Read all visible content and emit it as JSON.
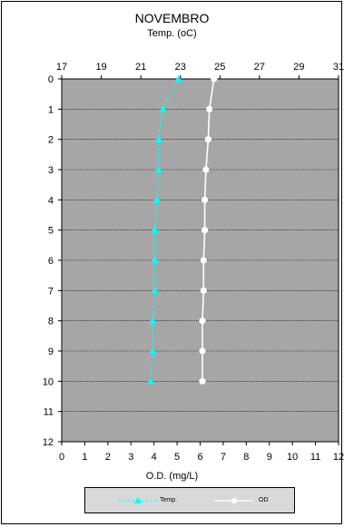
{
  "chart_data": {
    "type": "line",
    "title": "NOVEMBRO",
    "top_axis_label": "Temp. (oC)",
    "bottom_axis_label": "O.D. (mg/L)",
    "top_axis": {
      "range": [
        17,
        31
      ],
      "ticks": [
        "17",
        "19",
        "21",
        "23",
        "25",
        "27",
        "29",
        "31"
      ]
    },
    "bottom_axis": {
      "range": [
        0,
        12
      ],
      "ticks": [
        "0",
        "1",
        "2",
        "3",
        "4",
        "5",
        "6",
        "7",
        "8",
        "9",
        "10",
        "11",
        "12"
      ]
    },
    "y_axis": {
      "range": [
        0,
        12
      ],
      "inverted": true,
      "ticks": [
        "0",
        "1",
        "2",
        "3",
        "4",
        "5",
        "6",
        "7",
        "8",
        "9",
        "10",
        "11",
        "12"
      ]
    },
    "grid": true,
    "legend_position": "bottom",
    "plot_background": "#a6a6a6",
    "series": [
      {
        "name": "Temp.",
        "axis": "top",
        "color": "#00ffff",
        "marker": "triangle",
        "line_style": "dashed",
        "points": [
          {
            "x": 22.9,
            "depth": 0
          },
          {
            "x": 22.1,
            "depth": 1
          },
          {
            "x": 21.9,
            "depth": 2
          },
          {
            "x": 21.9,
            "depth": 3
          },
          {
            "x": 21.8,
            "depth": 4
          },
          {
            "x": 21.7,
            "depth": 5
          },
          {
            "x": 21.7,
            "depth": 6
          },
          {
            "x": 21.7,
            "depth": 7
          },
          {
            "x": 21.6,
            "depth": 8
          },
          {
            "x": 21.6,
            "depth": 9
          },
          {
            "x": 21.5,
            "depth": 10
          }
        ]
      },
      {
        "name": "OD",
        "axis": "bottom",
        "color": "#ffffff",
        "marker": "circle",
        "line_style": "solid",
        "points": [
          {
            "x": 6.6,
            "depth": 0
          },
          {
            "x": 6.4,
            "depth": 1
          },
          {
            "x": 6.35,
            "depth": 2
          },
          {
            "x": 6.25,
            "depth": 3
          },
          {
            "x": 6.2,
            "depth": 4
          },
          {
            "x": 6.2,
            "depth": 5
          },
          {
            "x": 6.15,
            "depth": 6
          },
          {
            "x": 6.15,
            "depth": 7
          },
          {
            "x": 6.1,
            "depth": 8
          },
          {
            "x": 6.1,
            "depth": 9
          },
          {
            "x": 6.1,
            "depth": 10
          }
        ]
      }
    ]
  }
}
